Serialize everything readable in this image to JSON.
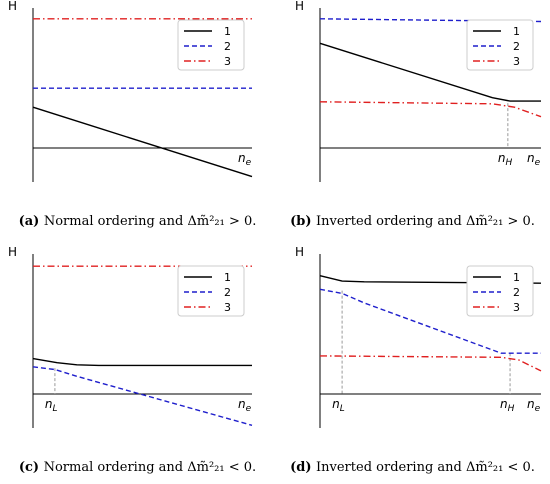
{
  "colors": {
    "line1": "#000000",
    "line2": "#1f1fcc",
    "line3": "#e02020",
    "axis": "#000000",
    "guide": "#999999",
    "legend_border": "#cccccc"
  },
  "chart_data": [
    {
      "type": "line",
      "panel": "a",
      "ylabel": "H",
      "xlabel": "n_e",
      "x_range": [
        0,
        1
      ],
      "y_range": [
        -0.25,
        1.0
      ],
      "legend": "top-right",
      "series": [
        {
          "name": "1",
          "style": "solid",
          "x": [
            0,
            1
          ],
          "y": [
            0.3,
            -0.21
          ]
        },
        {
          "name": "2",
          "style": "dashed",
          "x": [
            0,
            1
          ],
          "y": [
            0.44,
            0.44
          ]
        },
        {
          "name": "3",
          "style": "dashdot",
          "x": [
            0,
            1
          ],
          "y": [
            0.95,
            0.95
          ]
        }
      ],
      "markers": [],
      "caption": {
        "label": "(a)",
        "text": "Normal ordering and Δm̃²₂₁ > 0."
      }
    },
    {
      "type": "line",
      "panel": "b",
      "ylabel": "H",
      "xlabel": "n_e",
      "x_range": [
        0,
        1
      ],
      "y_range": [
        -0.25,
        1.0
      ],
      "legend": "top-right",
      "series": [
        {
          "name": "1",
          "style": "solid",
          "x": [
            0,
            0.78,
            0.86,
            1
          ],
          "y": [
            0.77,
            0.37,
            0.345,
            0.345
          ]
        },
        {
          "name": "2",
          "style": "dashed",
          "x": [
            0,
            1
          ],
          "y": [
            0.95,
            0.93
          ]
        },
        {
          "name": "3",
          "style": "dashdot",
          "x": [
            0,
            0.78,
            0.88,
            1
          ],
          "y": [
            0.34,
            0.325,
            0.3,
            0.23
          ]
        }
      ],
      "markers": [
        {
          "label": "n_H",
          "x": 0.85,
          "y": 0.33
        }
      ],
      "caption": {
        "label": "(b)",
        "text": "Inverted ordering and Δm̃²₂₁ > 0."
      }
    },
    {
      "type": "line",
      "panel": "c",
      "ylabel": "H",
      "xlabel": "n_e",
      "x_range": [
        0,
        1
      ],
      "y_range": [
        -0.25,
        1.0
      ],
      "legend": "top-right",
      "series": [
        {
          "name": "1",
          "style": "solid",
          "x": [
            0,
            0.11,
            0.2,
            0.3,
            1
          ],
          "y": [
            0.26,
            0.23,
            0.215,
            0.21,
            0.21
          ]
        },
        {
          "name": "2",
          "style": "dashed",
          "x": [
            0,
            0.1,
            0.2,
            1
          ],
          "y": [
            0.2,
            0.18,
            0.13,
            -0.23
          ]
        },
        {
          "name": "3",
          "style": "dashdot",
          "x": [
            0,
            1
          ],
          "y": [
            0.94,
            0.94
          ]
        }
      ],
      "markers": [
        {
          "label": "n_L",
          "x": 0.1,
          "y": 0.19
        }
      ],
      "caption": {
        "label": "(c)",
        "text": "Normal ordering and Δm̃²₂₁ < 0."
      }
    },
    {
      "type": "line",
      "panel": "d",
      "ylabel": "H",
      "xlabel": "n_e",
      "x_range": [
        0,
        1
      ],
      "y_range": [
        -0.25,
        1.0
      ],
      "legend": "top-right",
      "series": [
        {
          "name": "1",
          "style": "solid",
          "x": [
            0,
            0.1,
            0.2,
            1
          ],
          "y": [
            0.87,
            0.83,
            0.825,
            0.815
          ]
        },
        {
          "name": "2",
          "style": "dashed",
          "x": [
            0,
            0.1,
            0.2,
            0.82,
            1
          ],
          "y": [
            0.77,
            0.74,
            0.67,
            0.3,
            0.3
          ]
        },
        {
          "name": "3",
          "style": "dashdot",
          "x": [
            0,
            0.82,
            0.9,
            1
          ],
          "y": [
            0.28,
            0.27,
            0.25,
            0.17
          ]
        }
      ],
      "markers": [
        {
          "label": "n_L",
          "x": 0.1,
          "y": 0.76
        },
        {
          "label": "n_H",
          "x": 0.86,
          "y": 0.3
        }
      ],
      "caption": {
        "label": "(d)",
        "text": "Inverted ordering and Δm̃²₂₁ < 0."
      }
    }
  ]
}
